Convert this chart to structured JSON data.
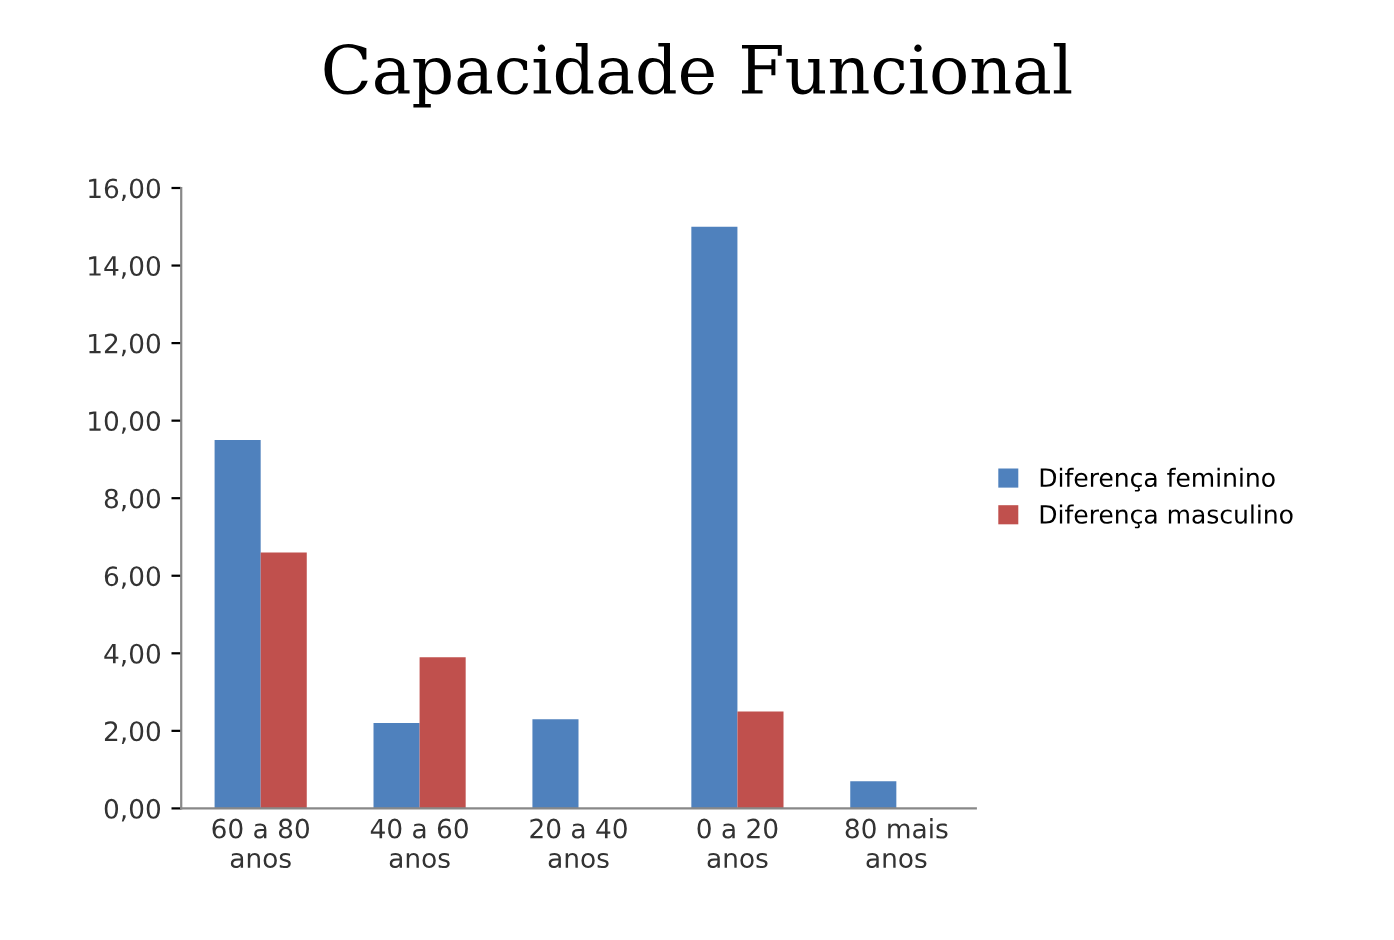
{
  "chart_data": {
    "type": "bar",
    "title": "Capacidade Funcional",
    "categories": [
      "60 a 80\nanos",
      "40 a 60\nanos",
      "20 a 40\nanos",
      "0 a 20\nanos",
      "80 mais\nanos"
    ],
    "series": [
      {
        "name": "Diferença feminino",
        "color": "#4f81bd",
        "values": [
          9.5,
          2.2,
          2.3,
          15.0,
          0.7
        ]
      },
      {
        "name": "Diferença masculino",
        "color": "#c0504d",
        "values": [
          6.6,
          3.9,
          0,
          2.5,
          0
        ]
      }
    ],
    "ylim": [
      0,
      16
    ],
    "yticks": [
      {
        "value": 0,
        "label": "0,00"
      },
      {
        "value": 2,
        "label": "2,00"
      },
      {
        "value": 4,
        "label": "4,00"
      },
      {
        "value": 6,
        "label": "6,00"
      },
      {
        "value": 8,
        "label": "8,00"
      },
      {
        "value": 10,
        "label": "10,00"
      },
      {
        "value": 12,
        "label": "12,00"
      },
      {
        "value": 14,
        "label": "14,00"
      },
      {
        "value": 16,
        "label": "16,00"
      }
    ],
    "grid": false,
    "legend": "right"
  }
}
